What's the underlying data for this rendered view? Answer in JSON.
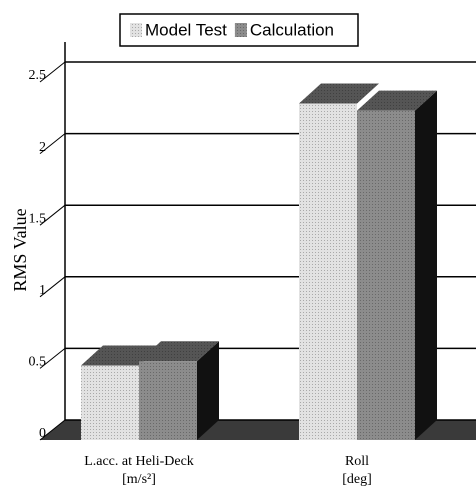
{
  "chart_data": {
    "type": "bar",
    "y_label": "RMS Value",
    "categories": [
      "L.acc. at Heli-Deck",
      "Roll"
    ],
    "category_units": [
      "[m/s²]",
      "[deg]"
    ],
    "series": [
      {
        "name": "Model Test",
        "color": "#e2e2e2",
        "values": [
          0.52,
          2.35
        ]
      },
      {
        "name": "Calculation",
        "color": "#8c8c8c",
        "values": [
          0.55,
          2.3
        ]
      }
    ],
    "ylim": [
      0,
      2.5
    ],
    "yticks": [
      0,
      0.5,
      1,
      1.5,
      2,
      2.5
    ],
    "grid": true,
    "legend": "top"
  }
}
